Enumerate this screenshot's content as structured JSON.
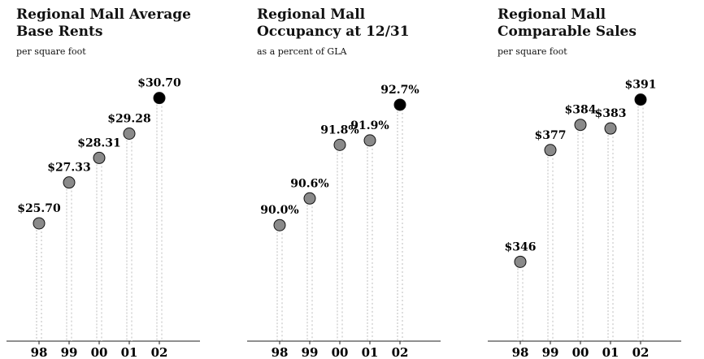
{
  "charts": [
    {
      "title_lines": [
        "Regional Mall Average",
        "Base Rents"
      ],
      "subtitle": "per square foot",
      "chart_data": {
        "type": "lollipop",
        "categories": [
          "98",
          "99",
          "00",
          "01",
          "02"
        ],
        "values": [
          25.7,
          27.33,
          28.31,
          29.28,
          30.7
        ],
        "value_labels": [
          "$25.70",
          "$27.33",
          "$28.31",
          "$29.28",
          "$30.70"
        ],
        "ylim": [
          21.0,
          31.5
        ],
        "colors": {
          "highlight": "#000000",
          "marker": "#8a8a8a",
          "stem": "#bdbdbd"
        }
      }
    },
    {
      "title_lines": [
        "Regional Mall",
        "Occupancy at 12/31"
      ],
      "subtitle": "as a percent of GLA",
      "chart_data": {
        "type": "lollipop",
        "categories": [
          "98",
          "99",
          "00",
          "01",
          "02"
        ],
        "values": [
          90.0,
          90.6,
          91.8,
          91.9,
          92.7
        ],
        "value_labels": [
          "90.0%",
          "90.6%",
          "91.8%",
          "91.9%",
          "92.7%"
        ],
        "ylim": [
          87.4,
          93.3
        ],
        "colors": {
          "highlight": "#000000",
          "marker": "#8a8a8a",
          "stem": "#bdbdbd"
        }
      }
    },
    {
      "title_lines": [
        "Regional Mall",
        "Comparable Sales"
      ],
      "subtitle": "per square foot",
      "chart_data": {
        "type": "lollipop",
        "categories": [
          "98",
          "99",
          "00",
          "01",
          "02"
        ],
        "values": [
          346,
          377,
          384,
          383,
          391
        ],
        "value_labels": [
          "$346",
          "$377",
          "$384",
          "$383",
          "$391"
        ],
        "ylim": [
          324,
          397
        ],
        "colors": {
          "highlight": "#000000",
          "marker": "#8a8a8a",
          "stem": "#bdbdbd"
        }
      }
    }
  ]
}
